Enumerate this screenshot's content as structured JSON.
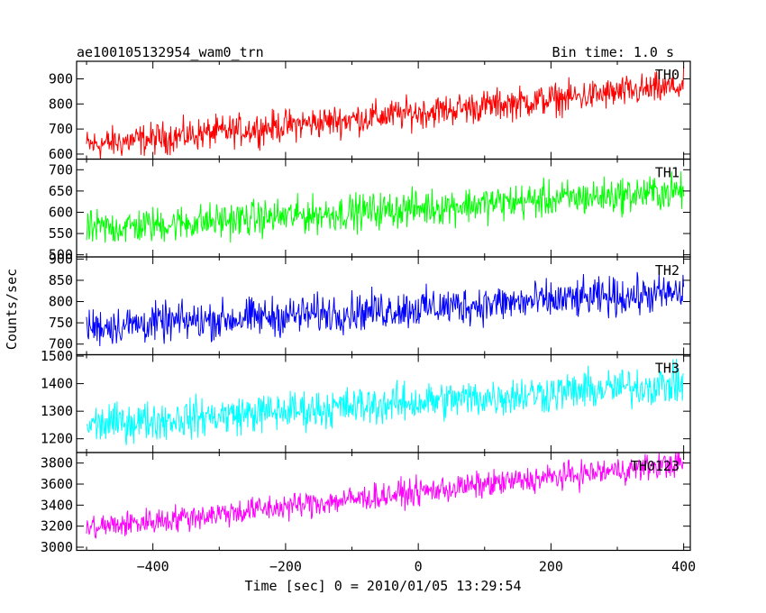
{
  "header": {
    "title": "ae100105132954_wam0_trn",
    "bin_time": "Bin time: 1.0 s"
  },
  "axes": {
    "xlabel": "Time [sec] 0 = 2010/01/05 13:29:54",
    "ylabel": "Counts/sec",
    "x_ticks": [
      "−400",
      "−200",
      "0",
      "200",
      "400"
    ]
  },
  "chart_data": [
    {
      "type": "line",
      "name": "TH0",
      "color": "#ff0000",
      "x_range": [
        -500,
        400
      ],
      "xlim": [
        -515,
        410
      ],
      "ylim": [
        580,
        970
      ],
      "yticks": [
        600,
        700,
        800,
        900
      ],
      "trend": [
        {
          "x": -500,
          "y": 635
        },
        {
          "x": 400,
          "y": 870
        }
      ],
      "noise_amplitude": 45
    },
    {
      "type": "line",
      "name": "TH1",
      "color": "#00ff00",
      "x_range": [
        -500,
        400
      ],
      "xlim": [
        -515,
        410
      ],
      "ylim": [
        495,
        725
      ],
      "yticks": [
        500,
        550,
        600,
        650,
        700
      ],
      "trend": [
        {
          "x": -500,
          "y": 560
        },
        {
          "x": 400,
          "y": 650
        }
      ],
      "noise_amplitude": 30
    },
    {
      "type": "line",
      "name": "TH2",
      "color": "#0000ff",
      "x_range": [
        -500,
        400
      ],
      "xlim": [
        -515,
        410
      ],
      "ylim": [
        675,
        905
      ],
      "yticks": [
        700,
        750,
        800,
        850,
        900
      ],
      "trend": [
        {
          "x": -500,
          "y": 740
        },
        {
          "x": 400,
          "y": 820
        }
      ],
      "noise_amplitude": 32
    },
    {
      "type": "line",
      "name": "TH3",
      "color": "#00ffff",
      "x_range": [
        -500,
        400
      ],
      "xlim": [
        -515,
        410
      ],
      "ylim": [
        1150,
        1505
      ],
      "yticks": [
        1200,
        1300,
        1400,
        1500
      ],
      "trend": [
        {
          "x": -500,
          "y": 1250
        },
        {
          "x": 400,
          "y": 1400
        }
      ],
      "noise_amplitude": 50
    },
    {
      "type": "line",
      "name": "TH0123",
      "color": "#ff00ff",
      "x_range": [
        -500,
        400
      ],
      "xlim": [
        -515,
        410
      ],
      "ylim": [
        2970,
        3900
      ],
      "yticks": [
        3000,
        3200,
        3400,
        3600,
        3800
      ],
      "trend": [
        {
          "x": -500,
          "y": 3180
        },
        {
          "x": 400,
          "y": 3800
        }
      ],
      "noise_amplitude": 90
    }
  ]
}
